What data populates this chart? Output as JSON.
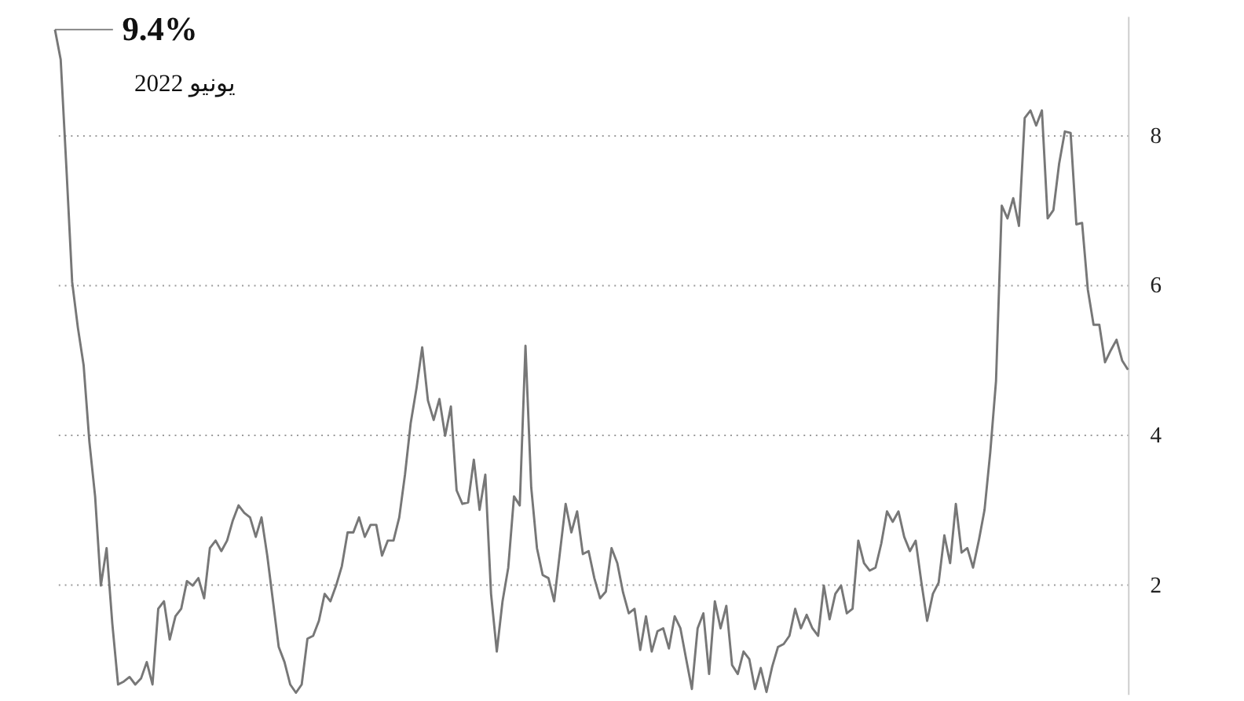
{
  "chart_data": {
    "type": "line",
    "annotations": [
      "9.4%",
      "يونيو 2022"
    ],
    "categories": [
      null,
      null,
      null,
      null,
      null,
      null,
      null,
      null,
      null,
      null,
      null,
      null,
      null,
      null,
      null,
      null,
      null,
      null,
      null,
      null,
      null,
      null,
      null,
      null,
      null,
      null,
      null,
      null,
      null,
      null,
      null,
      null,
      null,
      null,
      null,
      null,
      null,
      null,
      null,
      null,
      null,
      null,
      null,
      null,
      null,
      null,
      null,
      null,
      null,
      null,
      null,
      null,
      null,
      null,
      null,
      null,
      null,
      null,
      null,
      null,
      null,
      null,
      null,
      null,
      null,
      null,
      null,
      null,
      null,
      null,
      null,
      null,
      null,
      null,
      null,
      null,
      null,
      null,
      null,
      null,
      null,
      null,
      null,
      null,
      null,
      null,
      null,
      null,
      null,
      null,
      null,
      null,
      null,
      null,
      null,
      null,
      null,
      null,
      null,
      null,
      null,
      null,
      null,
      null,
      null,
      null,
      null,
      null,
      null,
      null,
      null,
      null,
      null,
      null,
      null,
      null,
      null,
      null,
      null,
      null,
      null,
      null,
      null,
      null,
      null,
      null,
      null,
      null,
      null,
      null,
      null,
      null,
      null,
      null,
      null,
      null,
      null,
      null,
      null,
      null,
      null,
      null,
      null,
      null,
      null,
      null,
      null,
      null,
      null,
      null,
      null,
      null,
      null,
      null,
      null,
      null,
      null,
      null,
      null,
      null,
      null,
      null,
      null,
      null,
      null,
      null,
      null,
      null,
      null,
      null,
      null,
      null,
      null,
      null,
      null,
      null,
      null,
      null,
      null,
      null,
      null,
      null,
      null,
      null,
      null,
      null,
      null,
      null
    ],
    "series": [
      {
        "color": "#777777",
        "values": [
          9.4,
          9.0,
          7.55,
          6.03,
          5.42,
          4.92,
          3.9,
          3.17,
          1.98,
          2.48,
          1.47,
          0.66,
          0.7,
          0.76,
          0.66,
          0.74,
          0.96,
          0.66,
          1.67,
          1.77,
          1.26,
          1.57,
          1.67,
          2.04,
          1.98,
          2.08,
          1.81,
          2.48,
          2.58,
          2.44,
          2.58,
          2.85,
          3.05,
          2.95,
          2.89,
          2.63,
          2.89,
          2.38,
          1.77,
          1.16,
          0.96,
          0.66,
          0.55,
          0.66,
          1.27,
          1.31,
          1.51,
          1.87,
          1.77,
          1.98,
          2.24,
          2.69,
          2.69,
          2.89,
          2.63,
          2.79,
          2.79,
          2.38,
          2.58,
          2.58,
          2.89,
          3.46,
          4.15,
          4.61,
          5.16,
          4.45,
          4.19,
          4.47,
          3.98,
          4.37,
          3.25,
          3.07,
          3.09,
          3.66,
          2.99,
          3.46,
          1.87,
          1.1,
          1.77,
          2.22,
          3.17,
          3.05,
          5.18,
          3.29,
          2.48,
          2.12,
          2.08,
          1.77,
          2.42,
          3.07,
          2.69,
          2.97,
          2.4,
          2.44,
          2.08,
          1.81,
          1.9,
          2.48,
          2.28,
          1.89,
          1.61,
          1.67,
          1.12,
          1.57,
          1.1,
          1.37,
          1.41,
          1.14,
          1.57,
          1.41,
          1.0,
          0.6,
          1.41,
          1.61,
          0.8,
          1.77,
          1.41,
          1.71,
          0.92,
          0.8,
          1.1,
          1.0,
          0.6,
          0.88,
          0.56,
          0.9,
          1.16,
          1.2,
          1.31,
          1.67,
          1.41,
          1.59,
          1.41,
          1.31,
          1.98,
          1.53,
          1.87,
          1.98,
          1.61,
          1.67,
          2.58,
          2.28,
          2.18,
          2.22,
          2.54,
          2.97,
          2.83,
          2.97,
          2.63,
          2.44,
          2.58,
          2.02,
          1.51,
          1.87,
          2.02,
          2.65,
          2.28,
          3.07,
          2.42,
          2.48,
          2.22,
          2.58,
          2.99,
          3.76,
          4.71,
          7.05,
          6.88,
          7.15,
          6.78,
          8.22,
          8.32,
          8.12,
          8.32,
          6.88,
          6.99,
          7.61,
          8.04,
          8.02,
          6.8,
          6.82,
          5.93,
          5.46,
          5.46,
          4.96,
          5.12,
          5.26,
          4.98,
          4.86
        ]
      }
    ],
    "ylim": [
      0.53,
      9.58
    ],
    "yticks": [
      2,
      4,
      6,
      8
    ],
    "grid": "y",
    "tick_labels": "y",
    "line_style": "solid",
    "marker": "none"
  }
}
